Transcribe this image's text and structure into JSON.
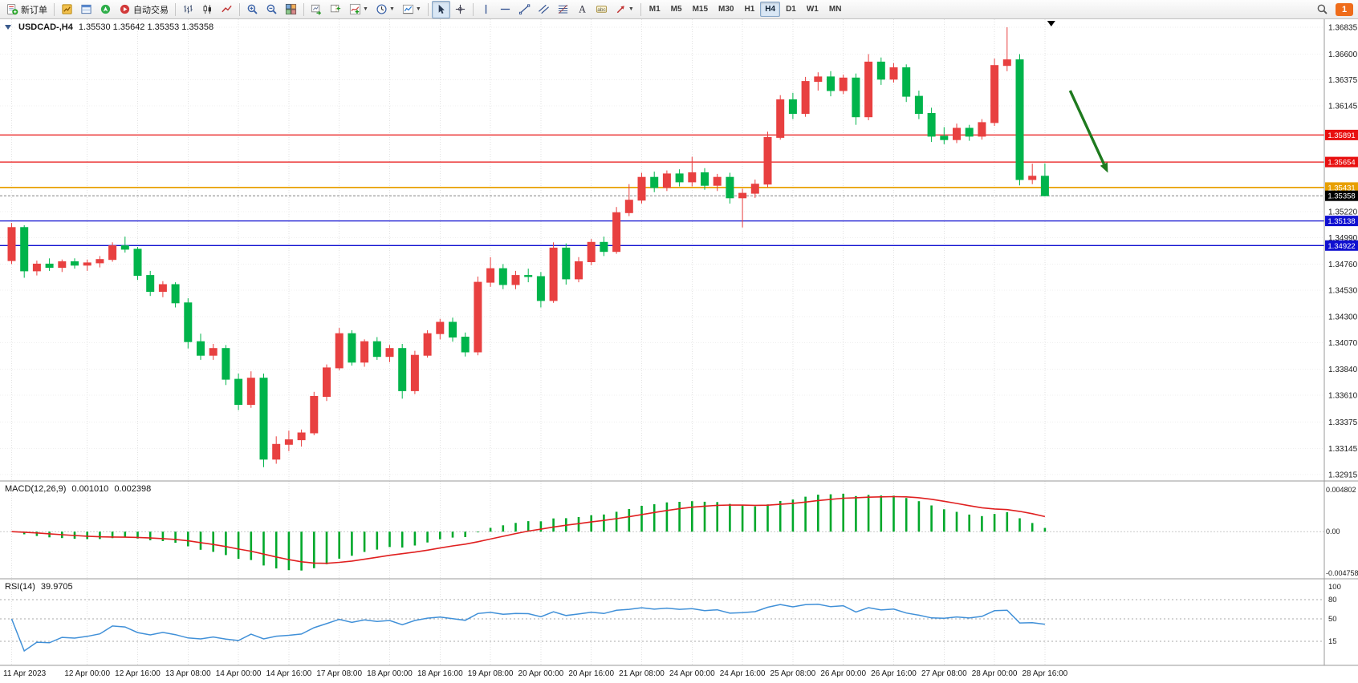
{
  "toolbar": {
    "items": [
      {
        "type": "button",
        "name": "new-order-button",
        "icon": "new-order-icon",
        "label": "新订单"
      },
      {
        "type": "sep"
      },
      {
        "type": "button",
        "name": "market-watch-button",
        "icon": "market-watch-icon"
      },
      {
        "type": "button",
        "name": "data-window-button",
        "icon": "data-window-icon"
      },
      {
        "type": "button",
        "name": "navigator-button",
        "icon": "navigator-icon"
      },
      {
        "type": "button",
        "name": "autotrading-button",
        "icon": "autotrading-icon",
        "label": "自动交易"
      },
      {
        "type": "sep"
      },
      {
        "type": "button",
        "name": "bar-chart-button",
        "icon": "bar-chart-icon"
      },
      {
        "type": "button",
        "name": "candlestick-button",
        "icon": "candlestick-icon"
      },
      {
        "type": "button",
        "name": "line-chart-button",
        "icon": "line-chart-icon"
      },
      {
        "type": "sep"
      },
      {
        "type": "button",
        "name": "zoom-in-button",
        "icon": "zoom-in-icon"
      },
      {
        "type": "button",
        "name": "zoom-out-button",
        "icon": "zoom-out-icon"
      },
      {
        "type": "button",
        "name": "tile-windows-button",
        "icon": "tile-windows-icon"
      },
      {
        "type": "sep"
      },
      {
        "type": "button",
        "name": "auto-scroll-button",
        "icon": "auto-scroll-icon"
      },
      {
        "type": "button",
        "name": "chart-shift-button",
        "icon": "chart-shift-icon"
      },
      {
        "type": "button",
        "name": "indicators-button",
        "icon": "indicators-icon",
        "caret": true
      },
      {
        "type": "button",
        "name": "periods-button",
        "icon": "periods-icon",
        "caret": true
      },
      {
        "type": "button",
        "name": "templates-button",
        "icon": "templates-icon",
        "caret": true
      },
      {
        "type": "sep"
      },
      {
        "type": "button",
        "name": "cursor-button",
        "icon": "cursor-icon",
        "active": true
      },
      {
        "type": "button",
        "name": "crosshair-button",
        "icon": "crosshair-icon"
      },
      {
        "type": "sep"
      },
      {
        "type": "button",
        "name": "vertical-line-button",
        "icon": "vertical-line-icon"
      },
      {
        "type": "button",
        "name": "horizontal-line-button",
        "icon": "horizontal-line-icon"
      },
      {
        "type": "button",
        "name": "trendline-button",
        "icon": "trendline-icon"
      },
      {
        "type": "button",
        "name": "channel-button",
        "icon": "channel-icon"
      },
      {
        "type": "button",
        "name": "fibonacci-button",
        "icon": "fibonacci-icon"
      },
      {
        "type": "button",
        "name": "text-button",
        "icon": "text-icon"
      },
      {
        "type": "button",
        "name": "text-label-button",
        "icon": "text-label-icon"
      },
      {
        "type": "button",
        "name": "arrows-button",
        "icon": "arrows-icon",
        "caret": true
      },
      {
        "type": "sep"
      }
    ],
    "timeframes": [
      "M1",
      "M5",
      "M15",
      "M30",
      "H1",
      "H4",
      "D1",
      "W1",
      "MN"
    ],
    "active_timeframe": "H4",
    "notification_count": "1"
  },
  "chart": {
    "title": "USDCAD-,H4",
    "ohlc_display": "1.35530 1.35642 1.35353 1.35358",
    "colors": {
      "bull": "#e84040",
      "bear": "#00b44b",
      "macd_hist": "#00a82a",
      "macd_signal": "#e02020",
      "rsi": "#4090d8",
      "level_red": "#e81010",
      "level_gold": "#e8a000",
      "level_blue": "#1010d0",
      "current": "#000000",
      "grid": "#e2e2e2"
    }
  },
  "macd": {
    "label": "MACD(12,26,9)",
    "value_main": "0.001010",
    "value_signal": "0.002398",
    "axis_labels": [
      "0.004802",
      "0.00",
      "-0.004758"
    ]
  },
  "rsi": {
    "label": "RSI(14)",
    "value": "39.9705",
    "axis_labels": [
      "100",
      "80",
      "50",
      "15"
    ]
  },
  "chart_data": {
    "type": "candlestick",
    "symbol": "USDCAD",
    "period": "H4",
    "price_axis": [
      1.36835,
      1.366,
      1.36375,
      1.36145,
      1.3522,
      1.3499,
      1.3476,
      1.3453,
      1.343,
      1.3407,
      1.3384,
      1.3361,
      1.33375,
      1.33145,
      1.32915
    ],
    "macd_axis": [
      0.004802,
      0,
      -0.004758
    ],
    "rsi_axis": [
      100,
      80,
      50,
      15
    ],
    "rsi_levels": [
      80,
      50,
      15
    ],
    "time_labels": [
      {
        "i": 0,
        "t": "11 Apr 2023"
      },
      {
        "i": 6,
        "t": "12 Apr 00:00"
      },
      {
        "i": 10,
        "t": "12 Apr 16:00"
      },
      {
        "i": 14,
        "t": "13 Apr 08:00"
      },
      {
        "i": 18,
        "t": "14 Apr 00:00"
      },
      {
        "i": 22,
        "t": "14 Apr 16:00"
      },
      {
        "i": 26,
        "t": "17 Apr 08:00"
      },
      {
        "i": 30,
        "t": "18 Apr 00:00"
      },
      {
        "i": 34,
        "t": "18 Apr 16:00"
      },
      {
        "i": 38,
        "t": "19 Apr 08:00"
      },
      {
        "i": 42,
        "t": "20 Apr 00:00"
      },
      {
        "i": 46,
        "t": "20 Apr 16:00"
      },
      {
        "i": 50,
        "t": "21 Apr 08:00"
      },
      {
        "i": 54,
        "t": "24 Apr 00:00"
      },
      {
        "i": 58,
        "t": "24 Apr 16:00"
      },
      {
        "i": 62,
        "t": "25 Apr 08:00"
      },
      {
        "i": 66,
        "t": "26 Apr 00:00"
      },
      {
        "i": 70,
        "t": "26 Apr 16:00"
      },
      {
        "i": 74,
        "t": "27 Apr 08:00"
      },
      {
        "i": 78,
        "t": "28 Apr 00:00"
      },
      {
        "i": 82,
        "t": "28 Apr 16:00"
      }
    ],
    "levels": [
      {
        "price": 1.35891,
        "color": "#e81010",
        "width": 1.3
      },
      {
        "price": 1.35654,
        "color": "#e81010",
        "width": 1.3
      },
      {
        "price": 1.35431,
        "color": "#e8a000",
        "width": 1.8
      },
      {
        "price": 1.35138,
        "color": "#1010d0",
        "width": 1.3
      },
      {
        "price": 1.34922,
        "color": "#1010d0",
        "width": 1.3
      }
    ],
    "current_price": 1.35358,
    "arrow": {
      "from": {
        "bar": 84,
        "price": 1.3628
      },
      "to": {
        "bar": 87,
        "price": 1.3556
      },
      "color": "#1e7a1e"
    },
    "shift_marker_bar": 82.5,
    "candles": [
      [
        1.3479,
        1.3512,
        1.3476,
        1.3508
      ],
      [
        1.3508,
        1.351,
        1.3464,
        1.347
      ],
      [
        1.347,
        1.3479,
        1.3466,
        1.3476
      ],
      [
        1.3476,
        1.3481,
        1.347,
        1.3473
      ],
      [
        1.3473,
        1.348,
        1.3469,
        1.3478
      ],
      [
        1.3478,
        1.3481,
        1.3472,
        1.3475
      ],
      [
        1.3475,
        1.348,
        1.347,
        1.3477
      ],
      [
        1.3477,
        1.3483,
        1.3473,
        1.348
      ],
      [
        1.348,
        1.3495,
        1.3478,
        1.3492
      ],
      [
        1.3492,
        1.35,
        1.3486,
        1.3489
      ],
      [
        1.3489,
        1.3491,
        1.3462,
        1.3466
      ],
      [
        1.3466,
        1.347,
        1.3448,
        1.3452
      ],
      [
        1.3452,
        1.3461,
        1.3447,
        1.3458
      ],
      [
        1.3458,
        1.346,
        1.3438,
        1.3442
      ],
      [
        1.3442,
        1.3446,
        1.3402,
        1.3408
      ],
      [
        1.3408,
        1.3415,
        1.3392,
        1.3396
      ],
      [
        1.3396,
        1.3406,
        1.3392,
        1.3402
      ],
      [
        1.3402,
        1.3405,
        1.337,
        1.3375
      ],
      [
        1.3375,
        1.338,
        1.3348,
        1.3353
      ],
      [
        1.3353,
        1.3382,
        1.335,
        1.3376
      ],
      [
        1.3376,
        1.338,
        1.3298,
        1.3305
      ],
      [
        1.3305,
        1.3325,
        1.3301,
        1.3318
      ],
      [
        1.3318,
        1.333,
        1.3312,
        1.3322
      ],
      [
        1.3322,
        1.3331,
        1.3316,
        1.3328
      ],
      [
        1.3328,
        1.3364,
        1.3326,
        1.336
      ],
      [
        1.336,
        1.3388,
        1.3356,
        1.3385
      ],
      [
        1.3385,
        1.342,
        1.3383,
        1.3415
      ],
      [
        1.3415,
        1.3418,
        1.3387,
        1.339
      ],
      [
        1.339,
        1.341,
        1.3386,
        1.3408
      ],
      [
        1.3408,
        1.3412,
        1.3392,
        1.3395
      ],
      [
        1.3395,
        1.3405,
        1.339,
        1.3402
      ],
      [
        1.3402,
        1.3406,
        1.3358,
        1.3365
      ],
      [
        1.3365,
        1.34,
        1.3362,
        1.3396
      ],
      [
        1.3396,
        1.3418,
        1.3394,
        1.3415
      ],
      [
        1.3415,
        1.3428,
        1.341,
        1.3425
      ],
      [
        1.3425,
        1.3429,
        1.3408,
        1.3412
      ],
      [
        1.3412,
        1.3416,
        1.3395,
        1.3399
      ],
      [
        1.3399,
        1.3465,
        1.3396,
        1.346
      ],
      [
        1.346,
        1.3482,
        1.3456,
        1.3472
      ],
      [
        1.3472,
        1.3476,
        1.3454,
        1.3458
      ],
      [
        1.3458,
        1.347,
        1.3454,
        1.3466
      ],
      [
        1.3466,
        1.3472,
        1.346,
        1.3465
      ],
      [
        1.3465,
        1.3469,
        1.3438,
        1.3444
      ],
      [
        1.3444,
        1.3495,
        1.3442,
        1.349
      ],
      [
        1.349,
        1.3494,
        1.3458,
        1.3463
      ],
      [
        1.3463,
        1.3482,
        1.346,
        1.3478
      ],
      [
        1.3478,
        1.3498,
        1.3475,
        1.3495
      ],
      [
        1.3495,
        1.35,
        1.3483,
        1.3487
      ],
      [
        1.3487,
        1.3526,
        1.3485,
        1.3521
      ],
      [
        1.3521,
        1.3546,
        1.3518,
        1.3532
      ],
      [
        1.3532,
        1.3556,
        1.3529,
        1.3552
      ],
      [
        1.3552,
        1.3557,
        1.3539,
        1.3543
      ],
      [
        1.3543,
        1.3558,
        1.354,
        1.3555
      ],
      [
        1.3555,
        1.3559,
        1.3544,
        1.3548
      ],
      [
        1.3548,
        1.357,
        1.3544,
        1.3556
      ],
      [
        1.3556,
        1.356,
        1.3541,
        1.3545
      ],
      [
        1.3545,
        1.3555,
        1.354,
        1.3552
      ],
      [
        1.3552,
        1.3556,
        1.3529,
        1.3534
      ],
      [
        1.3534,
        1.3542,
        1.3508,
        1.3538
      ],
      [
        1.3538,
        1.355,
        1.3534,
        1.3546
      ],
      [
        1.3546,
        1.3592,
        1.3543,
        1.3587
      ],
      [
        1.3587,
        1.3624,
        1.3585,
        1.362
      ],
      [
        1.362,
        1.3626,
        1.3603,
        1.3608
      ],
      [
        1.3608,
        1.364,
        1.3605,
        1.3636
      ],
      [
        1.3636,
        1.3644,
        1.3628,
        1.364
      ],
      [
        1.364,
        1.3645,
        1.3623,
        1.3628
      ],
      [
        1.3628,
        1.3642,
        1.3625,
        1.3639
      ],
      [
        1.3639,
        1.3643,
        1.3598,
        1.3605
      ],
      [
        1.3605,
        1.366,
        1.3602,
        1.3653
      ],
      [
        1.3653,
        1.3657,
        1.3633,
        1.3638
      ],
      [
        1.3638,
        1.3652,
        1.3635,
        1.3648
      ],
      [
        1.3648,
        1.3651,
        1.3618,
        1.3623
      ],
      [
        1.3623,
        1.3628,
        1.3603,
        1.3608
      ],
      [
        1.3608,
        1.3613,
        1.3583,
        1.3588
      ],
      [
        1.3588,
        1.3596,
        1.3581,
        1.3585
      ],
      [
        1.3585,
        1.3599,
        1.3582,
        1.3595
      ],
      [
        1.3595,
        1.3598,
        1.3584,
        1.3588
      ],
      [
        1.3588,
        1.3603,
        1.3585,
        1.36
      ],
      [
        1.36,
        1.3656,
        1.3597,
        1.365
      ],
      [
        1.365,
        1.36835,
        1.3645,
        1.3655
      ],
      [
        1.3655,
        1.366,
        1.3545,
        1.355
      ],
      [
        1.355,
        1.3564,
        1.3546,
        1.3553
      ],
      [
        1.3553,
        1.35642,
        1.35353,
        1.35358
      ]
    ]
  }
}
